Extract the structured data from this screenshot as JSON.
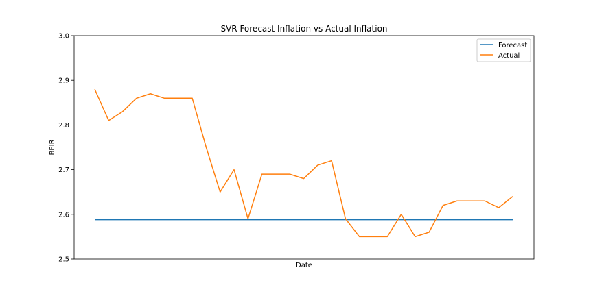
{
  "chart_data": {
    "type": "line",
    "title": "SVR Forecast Inflation vs Actual Inflation",
    "xlabel": "Date",
    "ylabel": "BEIR",
    "ylim": [
      2.5,
      3.0
    ],
    "yticks": [
      "2.5",
      "2.6",
      "2.7",
      "2.8",
      "2.9",
      "3.0"
    ],
    "x_tick_labels_visible": false,
    "grid": false,
    "legend": {
      "placement": "top-right"
    },
    "x": [
      0,
      1,
      2,
      3,
      4,
      5,
      6,
      7,
      8,
      9,
      10,
      11,
      12,
      13,
      14,
      15,
      16,
      17,
      18,
      19,
      20,
      21,
      22,
      23,
      24,
      25,
      26,
      27,
      28,
      29,
      30
    ],
    "series": [
      {
        "name": "Forecast",
        "color": "#1f77b4",
        "values": [
          2.588,
          2.588,
          2.588,
          2.588,
          2.588,
          2.588,
          2.588,
          2.588,
          2.588,
          2.588,
          2.588,
          2.588,
          2.588,
          2.588,
          2.588,
          2.588,
          2.588,
          2.588,
          2.588,
          2.588,
          2.588,
          2.588,
          2.588,
          2.588,
          2.588,
          2.588,
          2.588,
          2.588,
          2.588,
          2.588,
          2.588
        ]
      },
      {
        "name": "Actual",
        "color": "#ff7f0e",
        "values": [
          2.88,
          2.81,
          2.83,
          2.86,
          2.87,
          2.86,
          2.86,
          2.86,
          2.75,
          2.65,
          2.7,
          2.59,
          2.69,
          2.69,
          2.69,
          2.68,
          2.71,
          2.72,
          2.59,
          2.55,
          2.55,
          2.55,
          2.6,
          2.55,
          2.56,
          2.62,
          2.63,
          2.63,
          2.63,
          2.615,
          2.64
        ]
      }
    ]
  }
}
